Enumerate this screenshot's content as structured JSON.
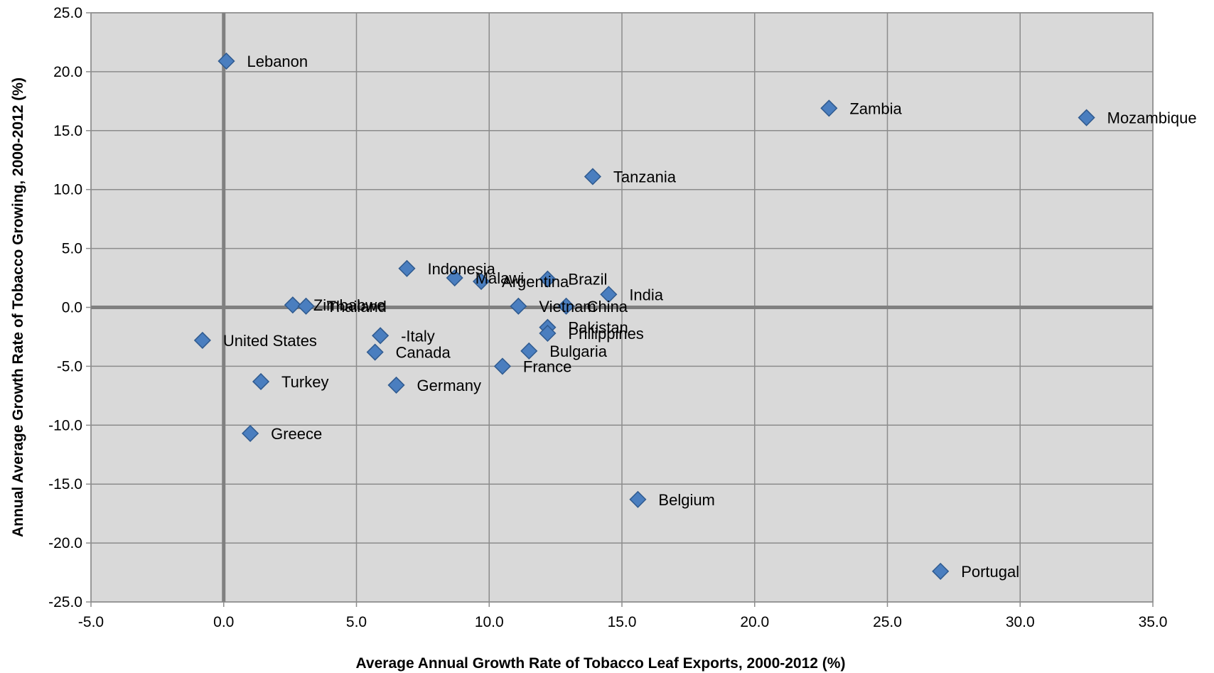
{
  "chart_data": {
    "type": "scatter",
    "title": "",
    "xlabel": "Average Annual Growth Rate of Tobacco Leaf Exports, 2000-2012 (%)",
    "ylabel": "Annual Average Growth Rate of Tobacco Growing, 2000-2012 (%)",
    "xlim": [
      -5,
      35
    ],
    "ylim": [
      -25,
      25
    ],
    "x_ticks": [
      -5,
      0,
      5,
      10,
      15,
      20,
      25,
      30,
      35
    ],
    "y_ticks": [
      -25,
      -20,
      -15,
      -10,
      -5,
      0,
      5,
      10,
      15,
      20,
      25
    ],
    "tick_decimals": 1,
    "grid": true,
    "marker": "diamond",
    "colors": {
      "marker_fill": "#4a7ebf",
      "marker_stroke": "#2f5a8f",
      "plot_background": "#d9d9d9",
      "grid": "#8c8c8c",
      "zero_axis": "#808080"
    },
    "points": [
      {
        "label": "Lebanon",
        "x": 0.1,
        "y": 20.9
      },
      {
        "label": "Zambia",
        "x": 22.8,
        "y": 16.9
      },
      {
        "label": "Mozambique",
        "x": 32.5,
        "y": 16.1
      },
      {
        "label": "Tanzania",
        "x": 13.9,
        "y": 11.1
      },
      {
        "label": "Indonesia",
        "x": 6.9,
        "y": 3.3
      },
      {
        "label": "Malawi",
        "x": 8.7,
        "y": 2.5
      },
      {
        "label": "Argentina",
        "x": 9.7,
        "y": 2.2
      },
      {
        "label": "Brazil",
        "x": 12.2,
        "y": 2.4
      },
      {
        "label": "India",
        "x": 14.5,
        "y": 1.1
      },
      {
        "label": "Zimbabwe",
        "x": 2.6,
        "y": 0.2
      },
      {
        "label": "Thailand",
        "x": 3.1,
        "y": 0.1
      },
      {
        "label": "Vietnam",
        "x": 11.1,
        "y": 0.1
      },
      {
        "label": "China",
        "x": 12.9,
        "y": 0.1
      },
      {
        "label": "Pakistan",
        "x": 12.2,
        "y": -1.7
      },
      {
        "label": "Philippines",
        "x": 12.2,
        "y": -2.2
      },
      {
        "label": "United States",
        "x": -0.8,
        "y": -2.8
      },
      {
        "label": "-Italy",
        "x": 5.9,
        "y": -2.4
      },
      {
        "label": "Canada",
        "x": 5.7,
        "y": -3.8
      },
      {
        "label": "Bulgaria",
        "x": 11.5,
        "y": -3.7
      },
      {
        "label": "France",
        "x": 10.5,
        "y": -5.0
      },
      {
        "label": "Turkey",
        "x": 1.4,
        "y": -6.3
      },
      {
        "label": "Germany",
        "x": 6.5,
        "y": -6.6
      },
      {
        "label": "Greece",
        "x": 1.0,
        "y": -10.7
      },
      {
        "label": "Belgium",
        "x": 15.6,
        "y": -16.3
      },
      {
        "label": "Portugal",
        "x": 27.0,
        "y": -22.4
      }
    ]
  }
}
